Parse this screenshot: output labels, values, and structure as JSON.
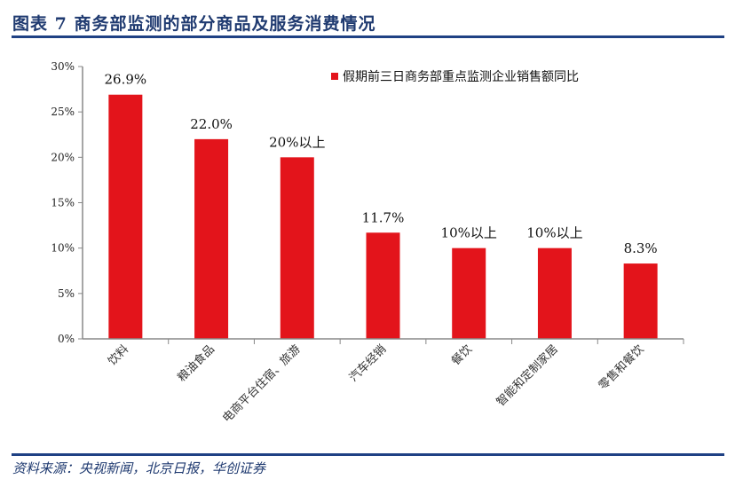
{
  "header": {
    "title": "图表 7  商务部监测的部分商品及服务消费情况"
  },
  "footer": {
    "source": "资料来源：央视新闻，北京日报，华创证券"
  },
  "colors": {
    "bar": "#e3141b",
    "title": "#1f3a70",
    "rule": "#1f4184"
  },
  "chart_data": {
    "type": "bar",
    "categories": [
      "饮料",
      "粮油食品",
      "电商平台住宿、旅游",
      "汽车经销",
      "餐饮",
      "智能和定制家居",
      "零售和餐饮"
    ],
    "series": [
      {
        "name": "假期前三日商务部重点监测企业销售额同比",
        "values": [
          26.9,
          22.0,
          20,
          11.7,
          10,
          10,
          8.3
        ]
      }
    ],
    "data_labels": [
      "26.9%",
      "22.0%",
      "20%以上",
      "11.7%",
      "10%以上",
      "10%以上",
      "8.3%"
    ],
    "yticks": [
      "0%",
      "5%",
      "10%",
      "15%",
      "20%",
      "25%",
      "30%"
    ],
    "ylim": [
      0,
      30
    ],
    "legend": "top-right",
    "grid": false
  }
}
